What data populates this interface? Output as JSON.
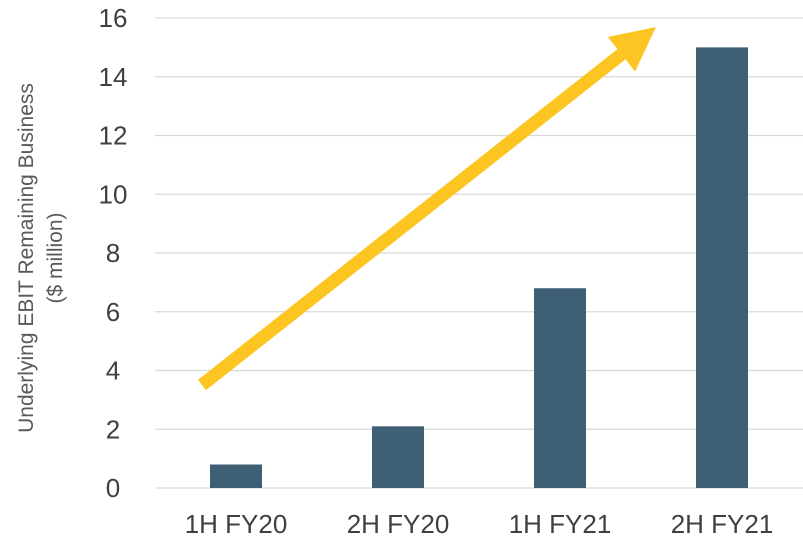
{
  "chart_data": {
    "type": "bar",
    "categories": [
      "1H FY20",
      "2H FY20",
      "1H FY21",
      "2H FY21"
    ],
    "values": [
      0.8,
      2.1,
      6.8,
      15.0
    ],
    "title": "",
    "xlabel": "",
    "ylabel_lines": [
      "Underlying EBIT Remaining Business",
      "($ million)"
    ],
    "ylim": [
      0,
      16
    ],
    "yticks": [
      0,
      2,
      4,
      6,
      8,
      10,
      12,
      14,
      16
    ],
    "grid": true,
    "legend": "none",
    "annotation": "upward trend arrow",
    "colors": {
      "bar": "#3e5f74",
      "arrow": "#fdc521",
      "grid": "#d9d9d9",
      "text": "#404040"
    }
  }
}
